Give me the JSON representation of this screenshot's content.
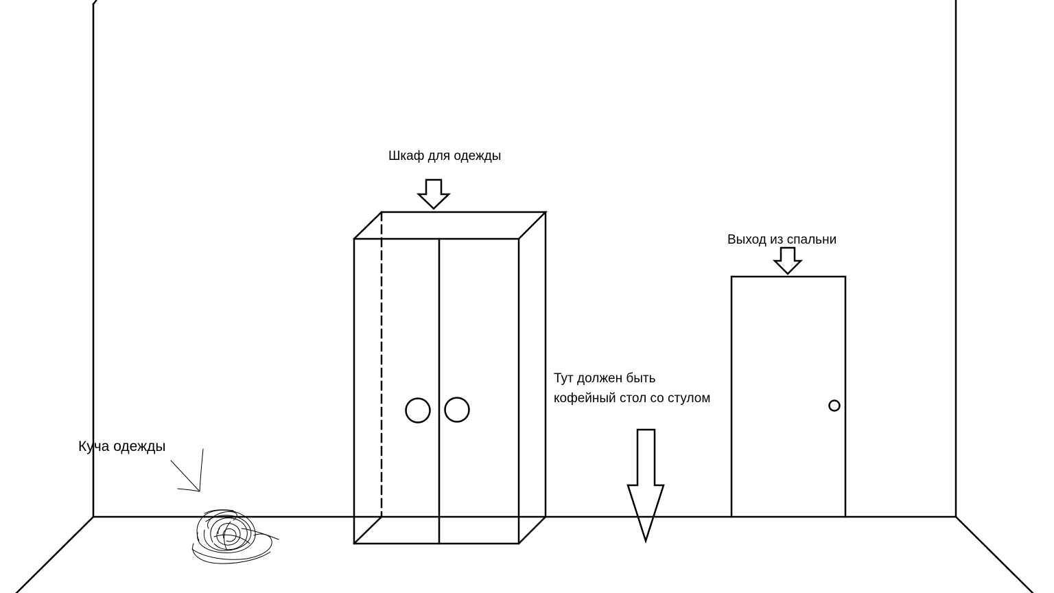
{
  "labels": {
    "wardrobe": "Шкаф для одежды",
    "exit": "Выход из спальни",
    "coffee_table_line1": "Тут должен быть",
    "coffee_table_line2": "кофейный стол со стулом",
    "clothes_pile": "Куча одежды"
  },
  "colors": {
    "ink": "#000000",
    "background": "#ffffff"
  }
}
